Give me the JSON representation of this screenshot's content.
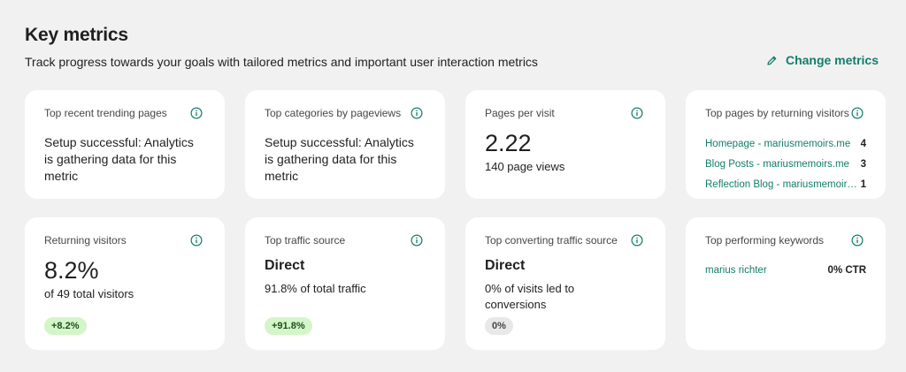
{
  "header": {
    "title": "Key metrics",
    "subtitle": "Track progress towards your goals with tailored metrics and important user interaction metrics",
    "change_metrics_label": "Change metrics"
  },
  "colors": {
    "accent": "#137d6b",
    "badge_green": "#d4f5c8",
    "badge_gray": "#e8e8e8",
    "background": "#f1f1f1"
  },
  "cards": {
    "trending_pages": {
      "title": "Top recent trending pages",
      "message": "Setup successful: Analytics is gathering data for this metric"
    },
    "top_categories": {
      "title": "Top categories by pageviews",
      "message": "Setup successful: Analytics is gathering data for this metric"
    },
    "pages_per_visit": {
      "title": "Pages per visit",
      "value": "2.22",
      "sub": "140 page views"
    },
    "returning_pages": {
      "title": "Top pages by returning visitors",
      "rows": [
        {
          "label": "Homepage - mariusmemoirs.me",
          "count": "4"
        },
        {
          "label": "Blog Posts - mariusmemoirs.me",
          "count": "3"
        },
        {
          "label": "Reflection Blog - mariusmemoirs.me",
          "count": "1"
        }
      ]
    },
    "returning_visitors": {
      "title": "Returning visitors",
      "value": "8.2%",
      "sub": "of 49 total visitors",
      "badge": "+8.2%"
    },
    "traffic_source": {
      "title": "Top traffic source",
      "value": "Direct",
      "sub": "91.8% of total traffic",
      "badge": "+91.8%"
    },
    "converting_source": {
      "title": "Top converting traffic source",
      "value": "Direct",
      "sub": "0% of visits led to conversions",
      "badge": "0%"
    },
    "keywords": {
      "title": "Top performing keywords",
      "rows": [
        {
          "keyword": "marius richter",
          "ctr": "0% CTR"
        }
      ]
    }
  }
}
